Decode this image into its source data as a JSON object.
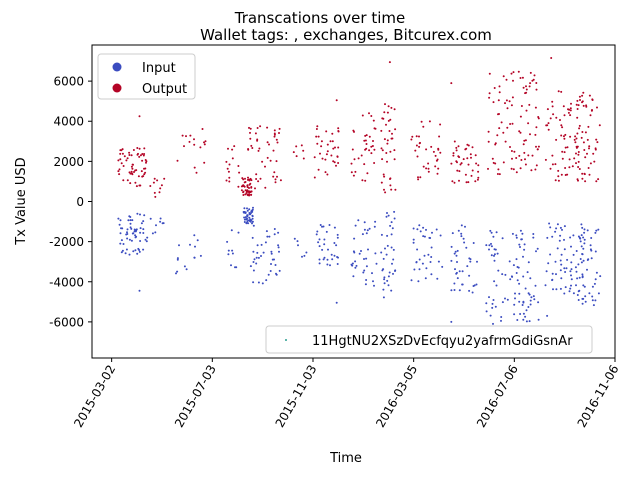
{
  "chart_data": {
    "type": "scatter",
    "title": "Transcations over time",
    "subtitle": "Wallet tags: , exchanges, Bitcurex.com",
    "xlabel": "Time",
    "ylabel": "Tx Value USD",
    "xlim": [
      "2015-02-06",
      "2016-11-06"
    ],
    "ylim": [
      -7800,
      7800
    ],
    "grid": false,
    "x_ticks": [
      "2015-03-02",
      "2015-07-03",
      "2015-11-03",
      "2016-03-05",
      "2016-07-06",
      "2016-11-06"
    ],
    "y_ticks": [
      -6000,
      -4000,
      -2000,
      0,
      2000,
      4000,
      6000
    ],
    "legend_position": "top-left",
    "address_legend_position": "bottom-right",
    "address_legend_label": "11HgtNU2XSzDvEcfqyu2yafrmGdiGsnAr",
    "address_legend_color": "#2a9d8f",
    "series": [
      {
        "name": "Input",
        "color": "#3b4cc0",
        "clusters": [
          {
            "start": "2015-03-10",
            "end": "2015-04-15",
            "min": -2700,
            "max": -600,
            "count": 60,
            "seed": 11
          },
          {
            "start": "2015-04-18",
            "end": "2015-05-10",
            "min": -1600,
            "max": -800,
            "count": 8,
            "seed": 12
          },
          {
            "start": "2015-05-18",
            "end": "2015-06-30",
            "min": -3600,
            "max": -1400,
            "count": 14,
            "seed": 13
          },
          {
            "start": "2015-07-20",
            "end": "2015-08-05",
            "min": -3300,
            "max": -1300,
            "count": 10,
            "seed": 14
          },
          {
            "start": "2015-08-10",
            "end": "2015-08-22",
            "min": -1100,
            "max": -300,
            "count": 45,
            "seed": 15
          },
          {
            "start": "2015-08-15",
            "end": "2015-09-25",
            "min": -4100,
            "max": -1000,
            "count": 40,
            "seed": 16
          },
          {
            "start": "2015-10-10",
            "end": "2015-10-30",
            "min": -3000,
            "max": -1500,
            "count": 6,
            "seed": 17
          },
          {
            "start": "2015-11-05",
            "end": "2015-12-05",
            "min": -3400,
            "max": -900,
            "count": 32,
            "seed": 18
          },
          {
            "start": "2015-12-20",
            "end": "2016-01-20",
            "min": -4200,
            "max": -800,
            "count": 35,
            "seed": 19
          },
          {
            "start": "2016-01-25",
            "end": "2016-02-12",
            "min": -4800,
            "max": -400,
            "count": 35,
            "seed": 20
          },
          {
            "start": "2016-03-01",
            "end": "2016-04-10",
            "min": -4000,
            "max": -1100,
            "count": 35,
            "seed": 21
          },
          {
            "start": "2016-04-20",
            "end": "2016-05-25",
            "min": -4600,
            "max": -800,
            "count": 40,
            "seed": 22
          },
          {
            "start": "2016-06-01",
            "end": "2016-08-05",
            "min": -6000,
            "max": -1400,
            "count": 95,
            "seed": 23
          },
          {
            "start": "2016-08-12",
            "end": "2016-09-30",
            "min": -4700,
            "max": -1000,
            "count": 70,
            "seed": 24
          },
          {
            "start": "2016-09-20",
            "end": "2016-10-20",
            "min": -5300,
            "max": -1100,
            "count": 45,
            "seed": 25
          }
        ],
        "points": [
          [
            "2015-04-05",
            -4450
          ],
          [
            "2016-04-20",
            -6000
          ],
          [
            "2016-06-10",
            -6100
          ],
          [
            "2016-07-10",
            -6300
          ],
          [
            "2016-08-15",
            -5700
          ],
          [
            "2015-12-02",
            -5050
          ]
        ]
      },
      {
        "name": "Output",
        "color": "#b40426",
        "clusters": [
          {
            "start": "2015-03-10",
            "end": "2015-04-15",
            "min": 700,
            "max": 2700,
            "count": 60,
            "seed": 31
          },
          {
            "start": "2015-04-18",
            "end": "2015-05-10",
            "min": 100,
            "max": 1300,
            "count": 10,
            "seed": 32
          },
          {
            "start": "2015-05-18",
            "end": "2015-06-30",
            "min": 1400,
            "max": 3700,
            "count": 16,
            "seed": 33
          },
          {
            "start": "2015-07-20",
            "end": "2015-08-05",
            "min": 700,
            "max": 3200,
            "count": 14,
            "seed": 34
          },
          {
            "start": "2015-08-08",
            "end": "2015-08-20",
            "min": 300,
            "max": 1200,
            "count": 50,
            "seed": 35
          },
          {
            "start": "2015-08-15",
            "end": "2015-09-25",
            "min": 600,
            "max": 3800,
            "count": 45,
            "seed": 36
          },
          {
            "start": "2015-10-10",
            "end": "2015-10-30",
            "min": 1500,
            "max": 2800,
            "count": 6,
            "seed": 37
          },
          {
            "start": "2015-11-05",
            "end": "2015-12-05",
            "min": 1000,
            "max": 3800,
            "count": 35,
            "seed": 38
          },
          {
            "start": "2015-12-20",
            "end": "2016-01-20",
            "min": 900,
            "max": 4400,
            "count": 35,
            "seed": 39
          },
          {
            "start": "2016-01-25",
            "end": "2016-02-12",
            "min": 400,
            "max": 4900,
            "count": 38,
            "seed": 40
          },
          {
            "start": "2016-03-01",
            "end": "2016-04-10",
            "min": 1100,
            "max": 4100,
            "count": 35,
            "seed": 41
          },
          {
            "start": "2016-04-20",
            "end": "2016-05-25",
            "min": 900,
            "max": 3000,
            "count": 40,
            "seed": 42
          },
          {
            "start": "2016-06-01",
            "end": "2016-08-05",
            "min": 1300,
            "max": 6500,
            "count": 95,
            "seed": 43
          },
          {
            "start": "2016-08-12",
            "end": "2016-09-30",
            "min": 1000,
            "max": 5500,
            "count": 75,
            "seed": 44
          },
          {
            "start": "2016-09-20",
            "end": "2016-10-20",
            "min": 900,
            "max": 5400,
            "count": 45,
            "seed": 45
          }
        ],
        "points": [
          [
            "2015-04-05",
            4250
          ],
          [
            "2015-12-02",
            5050
          ],
          [
            "2016-02-05",
            6950
          ],
          [
            "2016-04-20",
            5900
          ],
          [
            "2016-08-20",
            7150
          ],
          [
            "2016-07-05",
            6450
          ]
        ]
      }
    ]
  }
}
